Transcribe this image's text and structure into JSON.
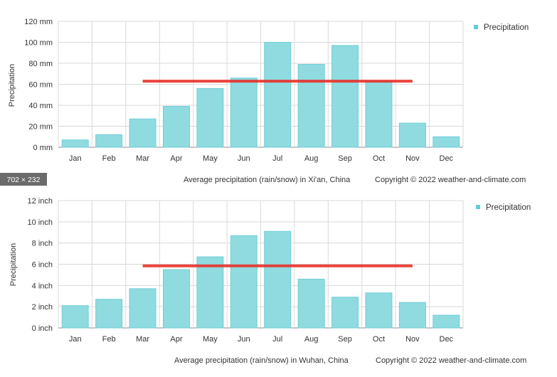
{
  "dimension_badge": "702 × 232",
  "chart_data": [
    {
      "type": "bar",
      "categories": [
        "Jan",
        "Feb",
        "Mar",
        "Apr",
        "May",
        "Jun",
        "Jul",
        "Aug",
        "Sep",
        "Oct",
        "Nov",
        "Dec"
      ],
      "series": [
        {
          "name": "Precipitation",
          "values": [
            7,
            12,
            27,
            39,
            56,
            66,
            100,
            79,
            97,
            63,
            23,
            10
          ]
        }
      ],
      "ylabel": "Precipitation",
      "y_unit": "mm",
      "ylim": [
        0,
        120
      ],
      "yticks": [
        "0 mm",
        "20 mm",
        "40 mm",
        "60 mm",
        "80 mm",
        "100 mm",
        "120 mm"
      ],
      "legend": "top-right",
      "grid": true,
      "reference_line": {
        "value": 63,
        "from": "Mar",
        "to": "Nov",
        "color": "#e8302a"
      },
      "caption": "Average precipitation (rain/snow) in Xi'an, China",
      "copyright": "Copyright © 2022  weather-and-climate.com",
      "bar_color": "#8fdbe0"
    },
    {
      "type": "bar",
      "categories": [
        "Jan",
        "Feb",
        "Mar",
        "Apr",
        "May",
        "Jun",
        "Jul",
        "Aug",
        "Sep",
        "Oct",
        "Nov",
        "Dec"
      ],
      "series": [
        {
          "name": "Precipitation",
          "values": [
            2.1,
            2.7,
            3.7,
            5.5,
            6.7,
            8.7,
            9.1,
            4.6,
            2.9,
            3.3,
            2.4,
            1.2
          ]
        }
      ],
      "ylabel": "Precipitation",
      "y_unit": "inch",
      "ylim": [
        0,
        12
      ],
      "yticks": [
        "0 inch",
        "2 inch",
        "4 inch",
        "6 inch",
        "8 inch",
        "10 inch",
        "12 inch"
      ],
      "legend": "top-right",
      "grid": true,
      "reference_line": {
        "value": 5.85,
        "from": "Mar",
        "to": "Nov",
        "color": "#e8302a"
      },
      "caption": "Average precipitation (rain/snow) in Wuhan, China",
      "copyright": "Copyright © 2022  weather-and-climate.com",
      "bar_color": "#8fdbe0"
    }
  ]
}
